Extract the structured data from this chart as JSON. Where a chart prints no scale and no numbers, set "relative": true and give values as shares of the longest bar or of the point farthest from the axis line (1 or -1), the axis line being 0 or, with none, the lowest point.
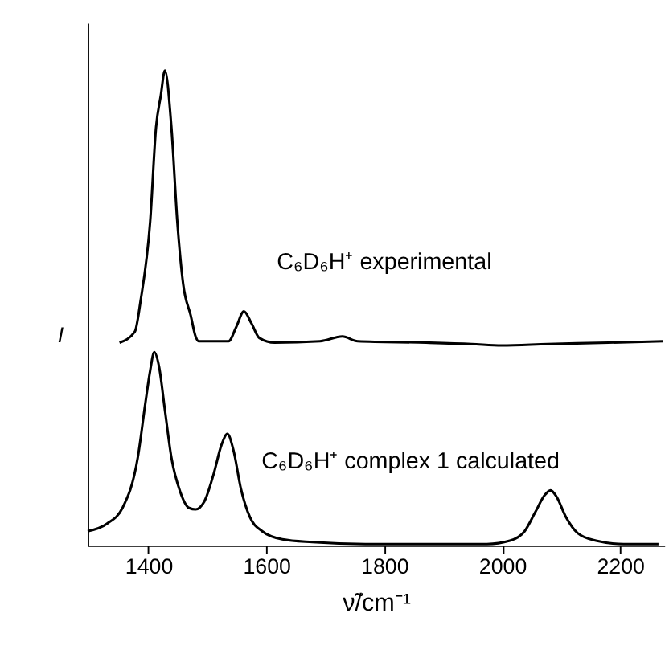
{
  "chart_data": {
    "type": "line",
    "relative": true,
    "xlabel": "ν̃/cm⁻¹",
    "ylabel": "I",
    "xlim": [
      1297,
      2275
    ],
    "xticks": [
      1400,
      1600,
      1800,
      2000,
      2200
    ],
    "tick_labels": "x",
    "grid": false,
    "marker": "none",
    "line_style": "solid",
    "series": [
      {
        "name": "C₆D₆H⁺ experimental",
        "color": "#000000",
        "x": [
          1351,
          1377,
          1387,
          1403,
          1413,
          1421,
          1428,
          1439,
          1449,
          1459,
          1472,
          1480,
          1485,
          1536,
          1549,
          1562,
          1575,
          1588,
          1614,
          1691,
          1729,
          1755,
          1871,
          1948,
          1999,
          2077,
          2180,
          2273
        ],
        "values": [
          0.427,
          0.45,
          0.517,
          0.682,
          0.881,
          0.947,
          1.0,
          0.881,
          0.682,
          0.55,
          0.483,
          0.44,
          0.43,
          0.43,
          0.46,
          0.493,
          0.467,
          0.437,
          0.427,
          0.43,
          0.44,
          0.43,
          0.427,
          0.424,
          0.421,
          0.424,
          0.427,
          0.43
        ]
      },
      {
        "name": "C₆D₆H⁺ complex 1 calculated",
        "color": "#000000",
        "x": [
          1297,
          1330,
          1356,
          1382,
          1395,
          1403,
          1410,
          1418,
          1428,
          1439,
          1454,
          1469,
          1480,
          1495,
          1511,
          1524,
          1534,
          1544,
          1557,
          1572,
          1593,
          1627,
          1678,
          1768,
          1974,
          2013,
          2038,
          2056,
          2072,
          2082,
          2092,
          2108,
          2128,
          2159,
          2206,
          2265
        ],
        "values": [
          0.03,
          0.046,
          0.079,
          0.185,
          0.301,
          0.368,
          0.407,
          0.377,
          0.285,
          0.185,
          0.113,
          0.079,
          0.076,
          0.093,
          0.152,
          0.212,
          0.235,
          0.202,
          0.119,
          0.06,
          0.03,
          0.013,
          0.007,
          0.003,
          0.003,
          0.01,
          0.03,
          0.07,
          0.106,
          0.116,
          0.103,
          0.06,
          0.026,
          0.01,
          0.003,
          0.003
        ]
      }
    ]
  }
}
